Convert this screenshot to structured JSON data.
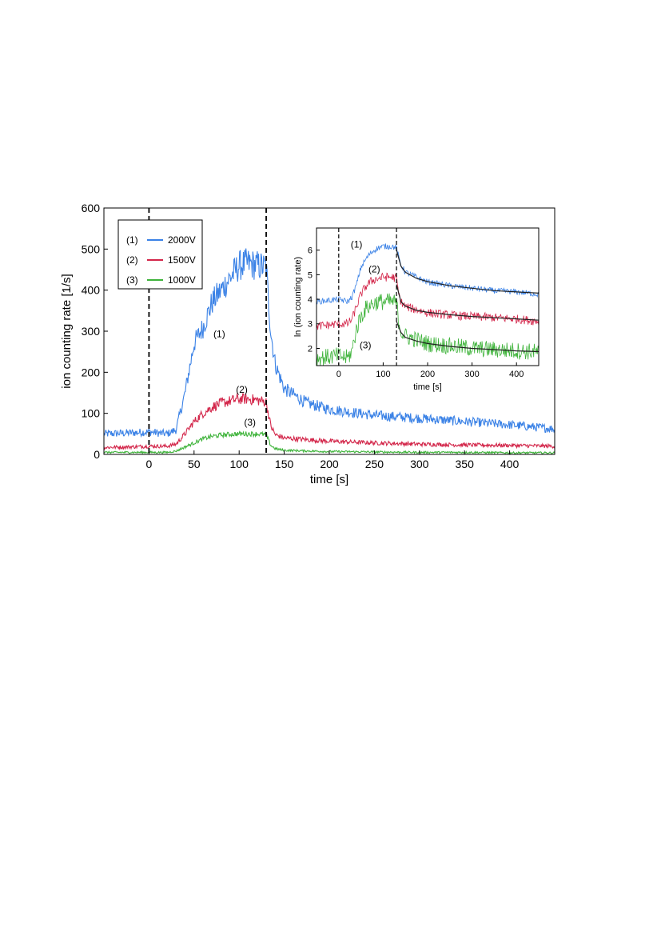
{
  "chart_data": [
    {
      "type": "line",
      "xlabel": "time [s]",
      "ylabel": "ion counting rate [1/s]",
      "xlim": [
        -50,
        450
      ],
      "ylim": [
        0,
        600
      ],
      "xticks": [
        0,
        50,
        100,
        150,
        200,
        250,
        300,
        350,
        400
      ],
      "yticks": [
        0,
        100,
        200,
        300,
        400,
        500,
        600
      ],
      "grid": false,
      "legend_position": "top-left",
      "vlines": [
        0,
        130
      ],
      "colors": {
        "s1": "#3b82e6",
        "s2": "#d3264a",
        "s3": "#3eb33a",
        "vline": "#000000"
      },
      "series": [
        {
          "name": "2000V",
          "legend_tag": "(1)",
          "color": "#3b82e6",
          "x": [
            -50,
            -25,
            0,
            20,
            30,
            40,
            50,
            60,
            70,
            80,
            90,
            100,
            110,
            120,
            130,
            135,
            140,
            150,
            175,
            200,
            250,
            300,
            350,
            400,
            450
          ],
          "y": [
            50,
            52,
            55,
            50,
            60,
            150,
            270,
            310,
            370,
            400,
            430,
            460,
            465,
            460,
            455,
            300,
            220,
            160,
            125,
            110,
            95,
            88,
            80,
            72,
            62
          ]
        },
        {
          "name": "1500V",
          "legend_tag": "(2)",
          "color": "#d3264a",
          "x": [
            -50,
            -25,
            0,
            20,
            30,
            40,
            50,
            60,
            70,
            80,
            90,
            100,
            110,
            120,
            130,
            135,
            140,
            150,
            200,
            250,
            300,
            350,
            400,
            450
          ],
          "y": [
            17,
            18,
            20,
            20,
            25,
            50,
            80,
            100,
            115,
            125,
            130,
            135,
            135,
            132,
            128,
            70,
            48,
            40,
            32,
            28,
            25,
            23,
            22,
            20
          ]
        },
        {
          "name": "1000V",
          "legend_tag": "(3)",
          "color": "#3eb33a",
          "x": [
            -50,
            -25,
            0,
            20,
            30,
            40,
            50,
            60,
            70,
            80,
            90,
            100,
            110,
            120,
            130,
            135,
            140,
            150,
            200,
            250,
            300,
            350,
            400,
            450
          ],
          "y": [
            5,
            5,
            5,
            5,
            8,
            18,
            28,
            38,
            44,
            47,
            49,
            50,
            50,
            50,
            48,
            22,
            14,
            10,
            7,
            6,
            5,
            5,
            4,
            4
          ]
        }
      ],
      "annotations": [
        {
          "text": "(1)",
          "x": 78,
          "y": 285
        },
        {
          "text": "(2)",
          "x": 103,
          "y": 150
        },
        {
          "text": "(3)",
          "x": 112,
          "y": 70
        }
      ]
    },
    {
      "type": "line",
      "xlabel": "time [s]",
      "ylabel": "ln (ion counting rate)",
      "xlim": [
        -50,
        450
      ],
      "ylim": [
        1.3,
        6.9
      ],
      "xticks": [
        0,
        100,
        200,
        300,
        400
      ],
      "yticks": [
        2,
        3,
        4,
        5,
        6
      ],
      "grid": false,
      "vlines": [
        0,
        130
      ],
      "colors": {
        "fit": "#222222"
      },
      "series": [
        {
          "name": "(1)",
          "color": "#3b82e6",
          "x": [
            -50,
            0,
            20,
            30,
            40,
            50,
            60,
            70,
            80,
            90,
            100,
            110,
            120,
            130,
            135,
            140,
            150,
            200,
            250,
            300,
            350,
            400,
            450
          ],
          "y": [
            3.9,
            4.0,
            3.9,
            4.1,
            4.6,
            5.3,
            5.6,
            5.85,
            6.0,
            6.1,
            6.15,
            6.15,
            6.15,
            6.1,
            5.7,
            5.4,
            5.1,
            4.7,
            4.55,
            4.45,
            4.35,
            4.3,
            4.2
          ]
        },
        {
          "name": "(2)",
          "color": "#d3264a",
          "x": [
            -50,
            0,
            20,
            30,
            40,
            50,
            60,
            70,
            80,
            90,
            100,
            110,
            120,
            130,
            135,
            140,
            150,
            200,
            250,
            300,
            350,
            400,
            450
          ],
          "y": [
            2.9,
            3.0,
            3.0,
            3.2,
            3.7,
            4.2,
            4.5,
            4.7,
            4.8,
            4.85,
            4.9,
            4.9,
            4.9,
            4.85,
            4.2,
            3.9,
            3.7,
            3.45,
            3.35,
            3.3,
            3.25,
            3.2,
            3.1
          ]
        },
        {
          "name": "(3)",
          "color": "#3eb33a",
          "x": [
            -50,
            0,
            20,
            30,
            40,
            50,
            60,
            70,
            80,
            90,
            100,
            110,
            120,
            130,
            135,
            140,
            150,
            200,
            250,
            300,
            350,
            400,
            450
          ],
          "y": [
            1.6,
            1.7,
            1.6,
            1.9,
            2.8,
            3.3,
            3.6,
            3.75,
            3.85,
            3.9,
            3.9,
            3.9,
            3.9,
            3.85,
            3.1,
            2.7,
            2.5,
            2.2,
            2.1,
            2.0,
            1.95,
            1.9,
            1.85
          ]
        }
      ],
      "fits": [
        {
          "x": [
            130,
            140,
            150,
            175,
            200,
            250,
            300,
            350,
            400,
            450
          ],
          "y": [
            6.0,
            5.35,
            5.1,
            4.85,
            4.72,
            4.55,
            4.45,
            4.35,
            4.3,
            4.25
          ]
        },
        {
          "x": [
            130,
            140,
            150,
            175,
            200,
            250,
            300,
            350,
            400,
            450
          ],
          "y": [
            4.6,
            3.9,
            3.72,
            3.55,
            3.47,
            3.37,
            3.3,
            3.25,
            3.2,
            3.15
          ]
        },
        {
          "x": [
            130,
            140,
            150,
            175,
            200,
            250,
            300,
            350,
            400,
            450
          ],
          "y": [
            3.1,
            2.65,
            2.45,
            2.3,
            2.2,
            2.08,
            2.0,
            1.95,
            1.9,
            1.87
          ]
        }
      ],
      "annotations": [
        {
          "text": "(1)",
          "x": 40,
          "y": 6.1
        },
        {
          "text": "(2)",
          "x": 80,
          "y": 5.1
        },
        {
          "text": "(3)",
          "x": 60,
          "y": 2.0
        }
      ]
    }
  ]
}
